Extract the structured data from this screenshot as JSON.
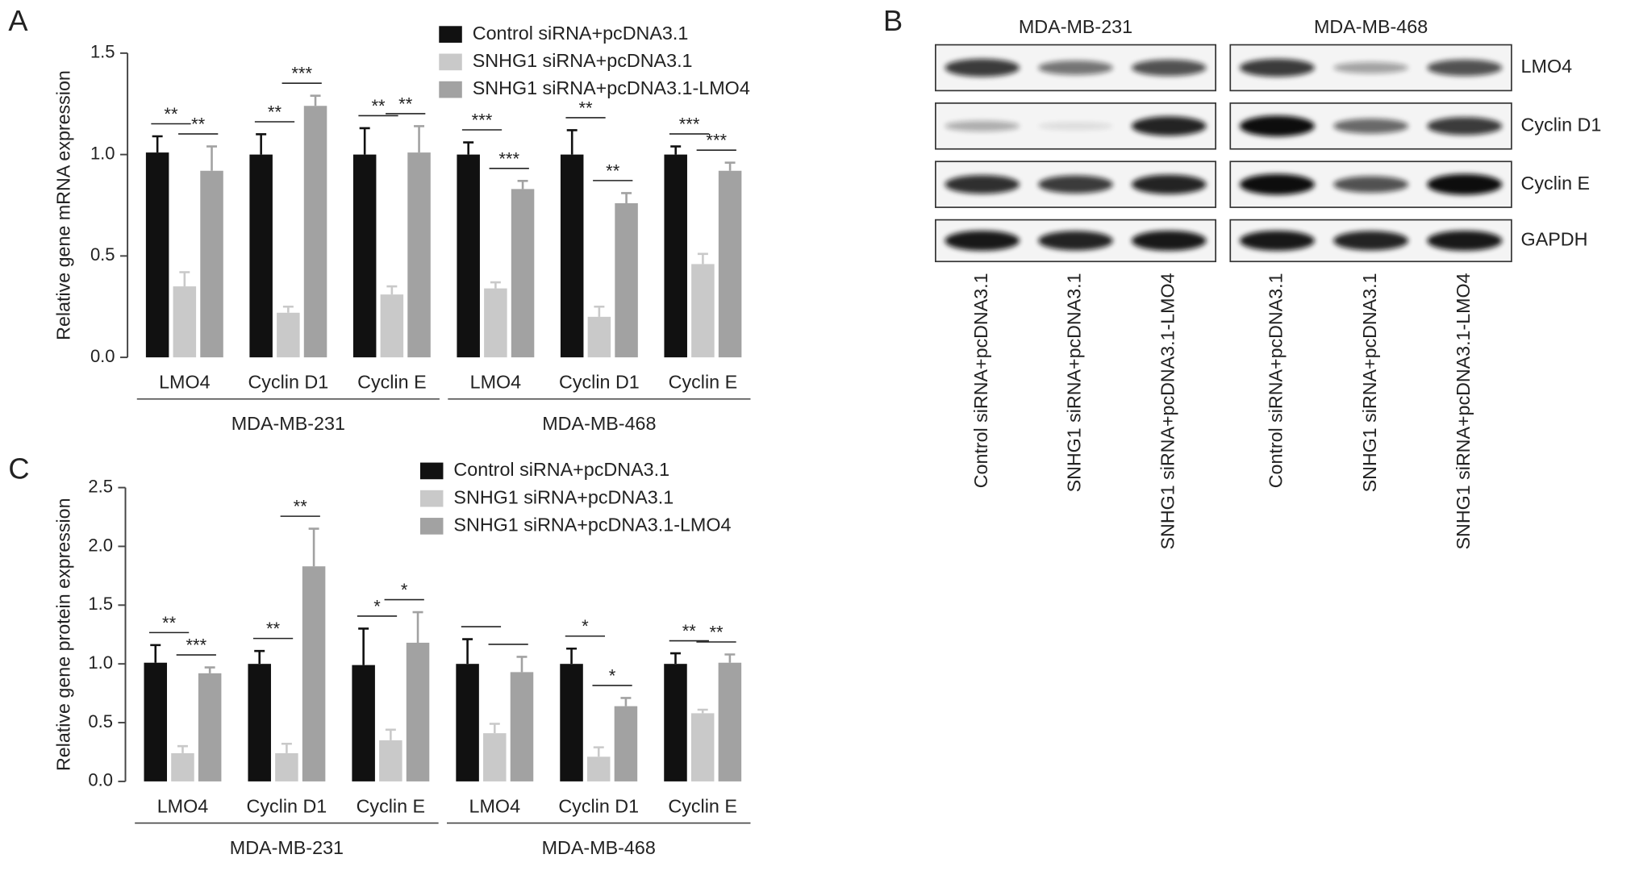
{
  "chart_data": [
    {
      "type": "bar",
      "panel": "A",
      "y_label": "Relative gene mRNA expression",
      "categories": [
        "LMO4",
        "Cyclin D1",
        "Cyclin E",
        "LMO4",
        "Cyclin D1",
        "Cyclin E"
      ],
      "groups": [
        "MDA-MB-231",
        "MDA-MB-468"
      ],
      "series": [
        {
          "name": "Control siRNA+pcDNA3.1",
          "color": "#111111",
          "values": [
            1.01,
            1.0,
            1.0,
            1.0,
            1.0,
            1.0
          ],
          "errors": [
            0.08,
            0.1,
            0.13,
            0.06,
            0.12,
            0.04
          ]
        },
        {
          "name": "SNHG1 siRNA+pcDNA3.1",
          "color": "#c9c9c9",
          "values": [
            0.35,
            0.22,
            0.31,
            0.34,
            0.2,
            0.46
          ],
          "errors": [
            0.07,
            0.03,
            0.04,
            0.03,
            0.05,
            0.05
          ]
        },
        {
          "name": "SNHG1 siRNA+pcDNA3.1-LMO4",
          "color": "#a2a2a2",
          "values": [
            0.92,
            1.24,
            1.01,
            0.83,
            0.76,
            0.92
          ],
          "errors": [
            0.12,
            0.05,
            0.13,
            0.04,
            0.05,
            0.04
          ]
        }
      ],
      "significance": [
        [
          "**",
          "**"
        ],
        [
          "**",
          "***"
        ],
        [
          "**",
          "**"
        ],
        [
          "***",
          "***"
        ],
        [
          "**",
          "**"
        ],
        [
          "***",
          "***"
        ]
      ],
      "ylim": [
        0,
        1.5
      ],
      "yticks": [
        {
          "value": 0,
          "label": "0.0"
        },
        0.5,
        {
          "value": 1,
          "label": "1.0"
        },
        1.5
      ]
    },
    {
      "type": "bar",
      "panel": "C",
      "y_label": "Relative gene protein expression",
      "categories": [
        "LMO4",
        "Cyclin D1",
        "Cyclin E",
        "LMO4",
        "Cyclin D1",
        "Cyclin E"
      ],
      "groups": [
        "MDA-MB-231",
        "MDA-MB-468"
      ],
      "series": [
        {
          "name": "Control siRNA+pcDNA3.1",
          "color": "#111111",
          "values": [
            1.01,
            1.0,
            0.99,
            1.0,
            1.0,
            1.0
          ],
          "errors": [
            0.15,
            0.11,
            0.31,
            0.21,
            0.13,
            0.09
          ]
        },
        {
          "name": "SNHG1 siRNA+pcDNA3.1",
          "color": "#c9c9c9",
          "values": [
            0.24,
            0.24,
            0.35,
            0.41,
            0.21,
            0.58
          ],
          "errors": [
            0.06,
            0.08,
            0.09,
            0.08,
            0.08,
            0.03
          ]
        },
        {
          "name": "SNHG1 siRNA+pcDNA3.1-LMO4",
          "color": "#a2a2a2",
          "values": [
            0.92,
            1.83,
            1.18,
            0.93,
            0.64,
            1.01
          ],
          "errors": [
            0.05,
            0.32,
            0.26,
            0.13,
            0.07,
            0.07
          ]
        }
      ],
      "significance": [
        [
          "**",
          "***"
        ],
        [
          "**",
          "**"
        ],
        [
          "*",
          "*"
        ],
        [
          null,
          null
        ],
        [
          "*",
          "*"
        ],
        [
          "**",
          "**"
        ]
      ],
      "ylim": [
        0,
        2.5
      ],
      "yticks": [
        {
          "value": 0,
          "label": "0.0"
        },
        0.5,
        {
          "value": 1,
          "label": "1.0"
        },
        1.5,
        {
          "value": 2,
          "label": "2.0"
        },
        2.5
      ]
    }
  ],
  "blot": {
    "panel": "B",
    "cell_lines": [
      "MDA-MB-231",
      "MDA-MB-468"
    ],
    "proteins": [
      "LMO4",
      "Cyclin D1",
      "Cyclin E",
      "GAPDH"
    ],
    "lanes": [
      "Control siRNA+pcDNA3.1",
      "SNHG1 siRNA+pcDNA3.1",
      "SNHG1 siRNA+pcDNA3.1-LMO4"
    ]
  }
}
